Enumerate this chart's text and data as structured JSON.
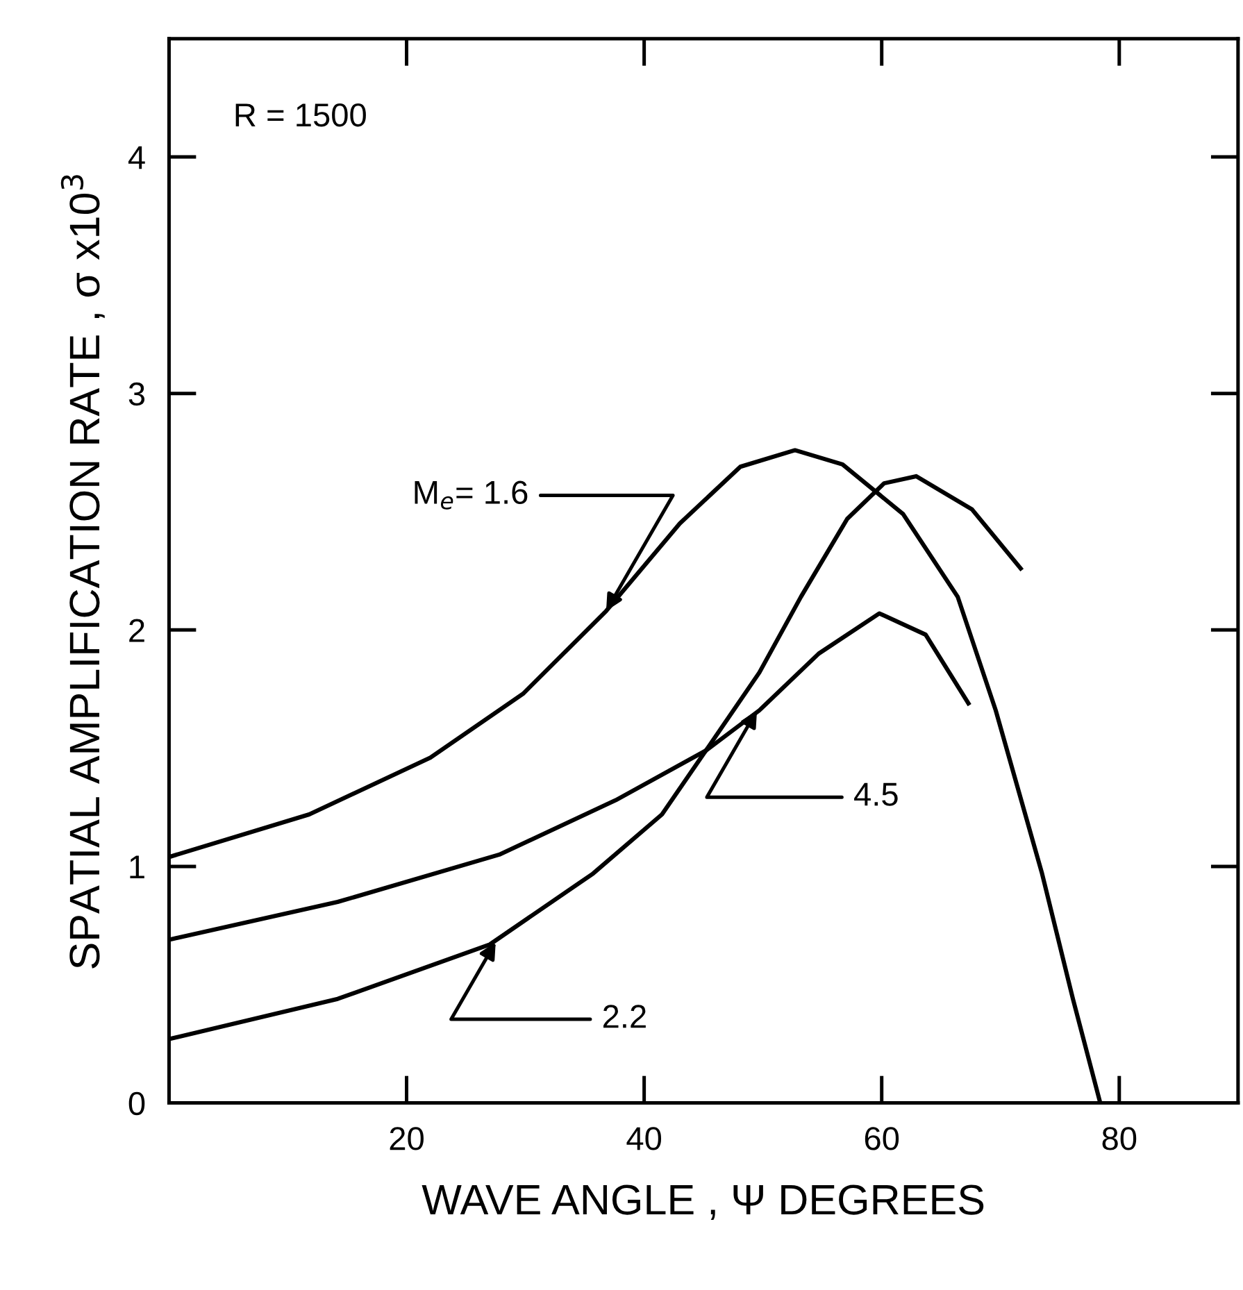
{
  "chart_data": {
    "type": "line",
    "xlabel": "WAVE ANGLE , Ψ DEGREES",
    "ylabel": "SPATIAL AMPLIFICATION RATE , σ x10$^{3}$",
    "xlim": [
      0,
      90
    ],
    "ylim": [
      0,
      4.5
    ],
    "xticks": [
      20,
      40,
      60,
      80
    ],
    "yticks": [
      0,
      1,
      2,
      3,
      4
    ],
    "grid": false,
    "legend": false,
    "marker": "none",
    "line_style": "solid",
    "series": [
      {
        "color": "#000000",
        "x": [
          0,
          11.8,
          22,
          29.8,
          36.8,
          43,
          48.1,
          52.7,
          56.7,
          61.8,
          66.4,
          69.6,
          73.5,
          76.1,
          78.4
        ],
        "values": [
          1.04,
          1.22,
          1.46,
          1.73,
          2.08,
          2.45,
          2.69,
          2.76,
          2.7,
          2.49,
          2.14,
          1.66,
          0.97,
          0.44,
          0
        ]
      },
      {
        "color": "#000000",
        "x": [
          0,
          14.2,
          27.8,
          37.6,
          45.2,
          49.7,
          54.7,
          59.8,
          63.7,
          67.3
        ],
        "values": [
          0.69,
          0.85,
          1.05,
          1.28,
          1.49,
          1.66,
          1.9,
          2.07,
          1.98,
          1.69
        ]
      },
      {
        "color": "#000000",
        "x": [
          0,
          14.2,
          27,
          35.7,
          41.5,
          45.2,
          49.7,
          53.2,
          57.1,
          60.2,
          62.9,
          67.6,
          71.7
        ],
        "values": [
          0.27,
          0.44,
          0.67,
          0.97,
          1.22,
          1.49,
          1.82,
          2.14,
          2.47,
          2.62,
          2.65,
          2.51,
          2.26
        ]
      }
    ],
    "annotations": [
      "R = 1500",
      {
        "text": "M$_{e}$= 1.6",
        "x": 36.8,
        "y": 2.08
      },
      {
        "text": "4.5",
        "x": 49.5,
        "y": 1.66
      },
      {
        "text": "2.2",
        "x": 27.5,
        "y": 0.68
      }
    ]
  }
}
